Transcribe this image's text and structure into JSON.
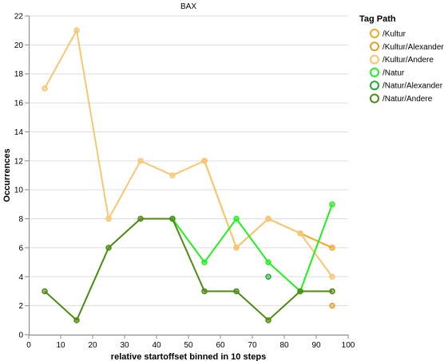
{
  "chart_data": {
    "type": "line",
    "title": "BAX",
    "xlabel": "relative startoffset binned in 10 steps",
    "ylabel": "Occurrences",
    "xlim": [
      0,
      100
    ],
    "ylim": [
      0,
      22
    ],
    "xticks": [
      0,
      10,
      20,
      30,
      40,
      50,
      60,
      70,
      80,
      90,
      100
    ],
    "yticks": [
      0,
      2,
      4,
      6,
      8,
      10,
      12,
      14,
      16,
      18,
      20,
      22
    ],
    "grid": "horizontal",
    "legend": {
      "title": "Tag Path",
      "position": "right"
    },
    "series": [
      {
        "name": "/Kultur",
        "color": "#f5a623",
        "x": [
          55,
          65,
          75,
          85,
          95
        ],
        "y": [
          12,
          6,
          8,
          7,
          6
        ]
      },
      {
        "name": "/Kultur/Alexander",
        "color": "#e0a02a",
        "x": [
          95
        ],
        "y": [
          2
        ]
      },
      {
        "name": "/Kultur/Andere",
        "color": "#f7c673",
        "x": [
          5,
          15,
          25,
          35,
          45,
          55,
          65,
          75,
          85,
          95
        ],
        "y": [
          17,
          21,
          8,
          12,
          11,
          12,
          6,
          8,
          7,
          4
        ]
      },
      {
        "name": "/Natur",
        "color": "#22ee22",
        "x": [
          45,
          55,
          65,
          75,
          85,
          95
        ],
        "y": [
          8,
          5,
          8,
          5,
          3,
          9
        ]
      },
      {
        "name": "/Natur/Alexander",
        "color": "#1faa3a",
        "x": [
          75
        ],
        "y": [
          4
        ]
      },
      {
        "name": "/Natur/Andere",
        "color": "#4d8a12",
        "x": [
          5,
          15,
          25,
          35,
          45,
          55,
          65,
          75,
          85,
          95
        ],
        "y": [
          3,
          1,
          6,
          8,
          8,
          3,
          3,
          1,
          3,
          3
        ]
      }
    ]
  }
}
